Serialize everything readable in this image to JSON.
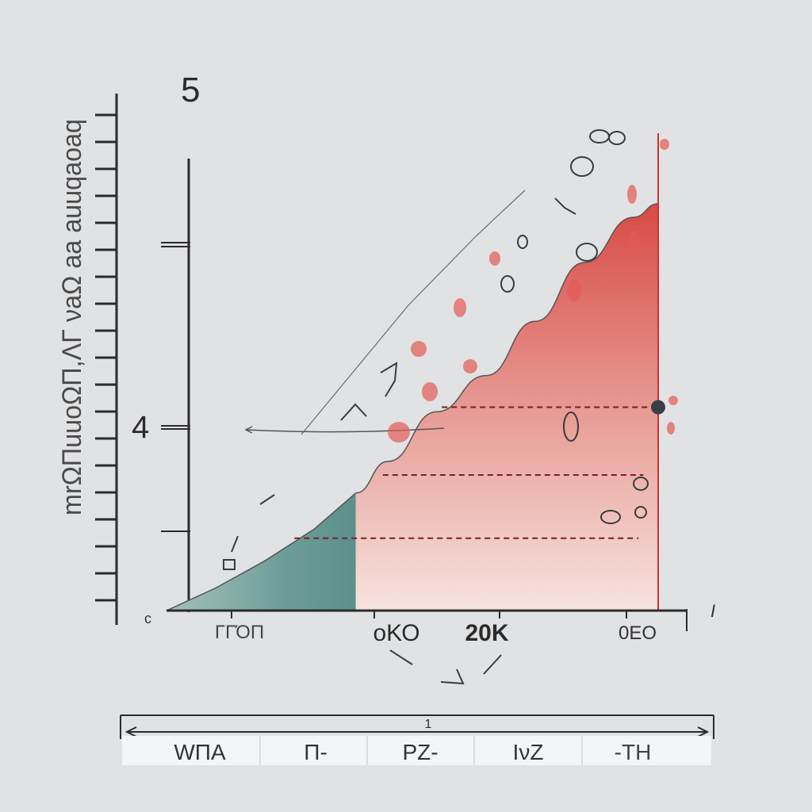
{
  "chart_data": {
    "type": "area",
    "title": "5",
    "ylabel": "mrΩΠuuoΩΠ,ΛΓ νaΩ aa auuqaoaq",
    "y_tick_labels": [
      "4"
    ],
    "x_tick_labels": [
      "ΓΓΌΠ",
      "oΚΟ",
      "20Κ",
      "0ΕΟ"
    ],
    "annotations": [
      "Ι",
      "c",
      "Ι"
    ],
    "xlim": [
      0,
      100
    ],
    "ylim": [
      0,
      100
    ],
    "series": [
      {
        "fill": "teal",
        "x": [
          0,
          10,
          20,
          30,
          38.5
        ],
        "y": [
          0,
          5,
          11,
          18,
          26
        ]
      },
      {
        "fill": "red",
        "x": [
          38.5,
          45,
          55,
          65,
          75,
          85,
          95,
          100
        ],
        "y": [
          26,
          33,
          44,
          52,
          64,
          77,
          87,
          90
        ]
      }
    ],
    "reference_lines": [
      {
        "from_x": 26,
        "to_x": 96,
        "y": 16
      },
      {
        "from_x": 44,
        "to_x": 97,
        "y": 30
      },
      {
        "from_x": 56,
        "to_x": 100,
        "y": 45
      }
    ],
    "marker": {
      "x": 100,
      "y": 45
    },
    "vertical_line_x": 100
  },
  "legend_table": {
    "range_label": "1",
    "cells": [
      "WΠΑ",
      "Π-",
      "ΡΖ-",
      "ΙνΖ",
      "-ΤΗ"
    ]
  },
  "colors": {
    "background": "#e1e2e4",
    "axis": "#2b2b2b",
    "red_fill": "#d84a45",
    "teal_fill": "#5f938f",
    "red_line": "#d0322c",
    "dashed": "#7a1f1f"
  }
}
